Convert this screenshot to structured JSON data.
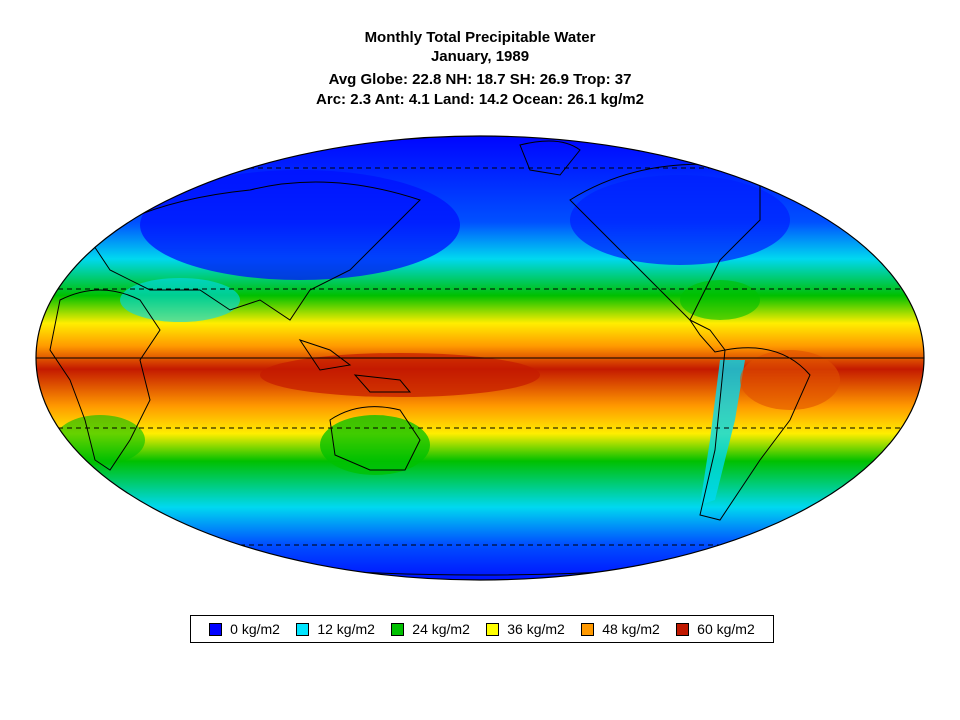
{
  "title": "Monthly Total Precipitable Water",
  "subtitle": "January, 1989",
  "stats_line1": "Avg Globe: 22.8  NH: 18.7  SH: 26.9  Trop: 37",
  "stats_line2": "Arc: 2.3  Ant: 4.1  Land: 14.2  Ocean: 26.1 kg/m2",
  "map": {
    "projection": "mollweide",
    "graticule": [
      "equator solid",
      "tropics dashed",
      "polar circles dashed"
    ],
    "palette": [
      "#0000ff",
      "#00e0ff",
      "#00c000",
      "#ffff00",
      "#ff9900",
      "#c01800"
    ]
  },
  "legend": {
    "items": [
      {
        "label": "0 kg/m2",
        "color": "#0000ff"
      },
      {
        "label": "12 kg/m2",
        "color": "#00e5ff"
      },
      {
        "label": "24 kg/m2",
        "color": "#00c000"
      },
      {
        "label": "36 kg/m2",
        "color": "#ffff00"
      },
      {
        "label": "48 kg/m2",
        "color": "#ff9900"
      },
      {
        "label": "60 kg/m2",
        "color": "#c01800"
      }
    ]
  }
}
